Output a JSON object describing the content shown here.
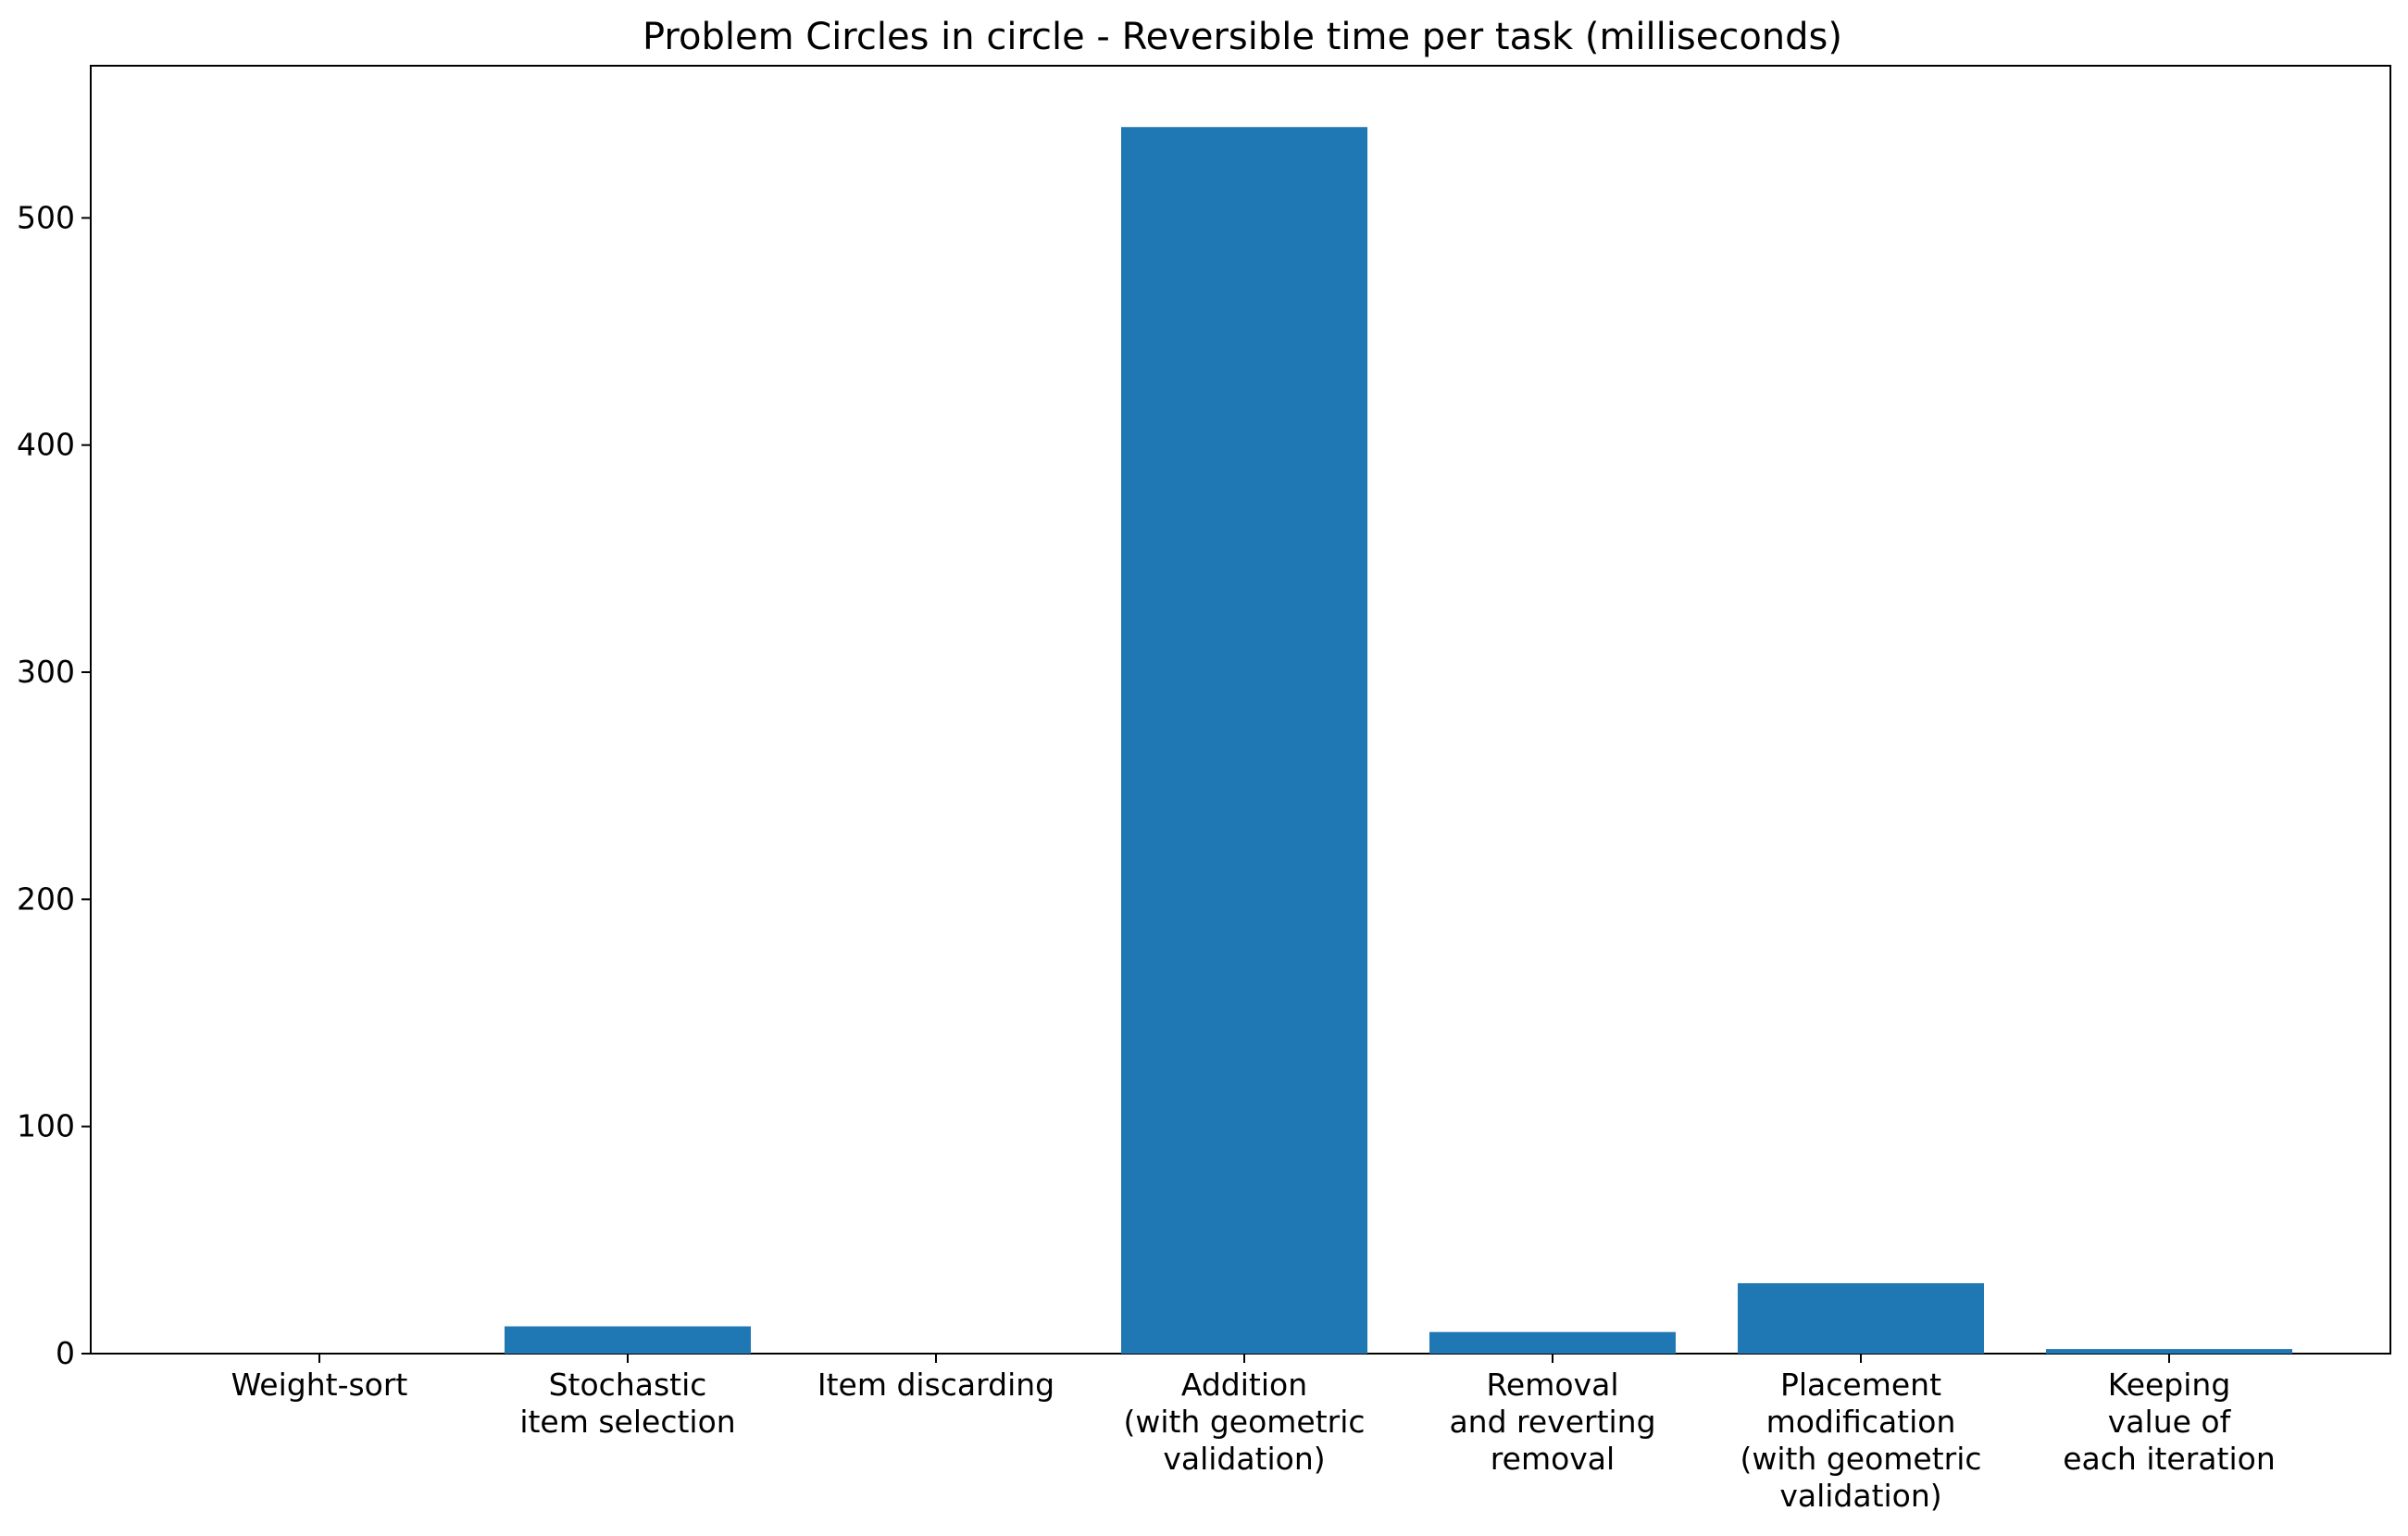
{
  "chart_data": {
    "type": "bar",
    "title": "Problem Circles in circle - Reversible time per task (milliseconds)",
    "xlabel": "",
    "ylabel": "",
    "categories": [
      [
        "Weight-sort"
      ],
      [
        "Stochastic",
        "item selection"
      ],
      [
        "Item discarding"
      ],
      [
        "Addition",
        "(with geometric",
        "validation)"
      ],
      [
        "Removal",
        "and reverting",
        "removal"
      ],
      [
        "Placement",
        "modification",
        "(with geometric",
        "validation)"
      ],
      [
        "Keeping",
        "value of",
        "each iteration"
      ]
    ],
    "values": [
      0,
      12,
      0,
      540,
      9.5,
      31,
      2
    ],
    "ylim": [
      0,
      567
    ],
    "yticks": [
      0,
      100,
      200,
      300,
      400,
      500
    ],
    "grid": false,
    "bar_color": "#1f77b4"
  }
}
